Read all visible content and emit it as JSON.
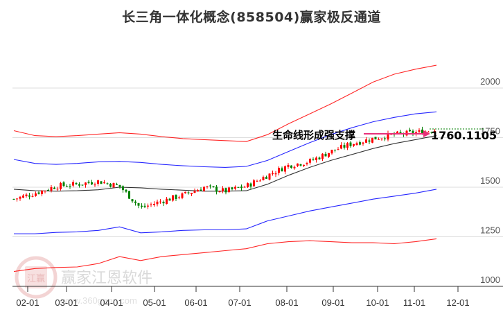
{
  "header": {
    "title": "长三角一体化概念(858504)赢家极反通道"
  },
  "annotation": {
    "label": "生命线形成强支撑",
    "value": "1760.1105"
  },
  "watermark": {
    "brand": "赢家江恩软件",
    "url": "www.360gann.com",
    "seal_chars": [
      "江",
      "赢",
      "恩",
      "家"
    ]
  },
  "colors": {
    "up": "#ff0000",
    "down": "#008000",
    "outer_band": "#ff0000",
    "inner_band": "#0000ff",
    "lifeline": "#000000",
    "arrow": "#e8307a",
    "grid": "#dddddd"
  },
  "chart_data": {
    "type": "line",
    "title": "长三角一体化概念(858504)赢家极反通道",
    "xlabel": "",
    "ylabel": "",
    "ylim": [
      1000,
      2150
    ],
    "y_ticks": [
      1000,
      1250,
      1500,
      1750,
      2000
    ],
    "x_ticks": [
      "02-01",
      "03-01",
      "04-01",
      "05-01",
      "06-01",
      "07-01",
      "08-01",
      "09-01",
      "10-01",
      "11-01",
      "12-01"
    ],
    "grid": true,
    "legend": "none",
    "x": [
      "01-20",
      "02-01",
      "02-15",
      "03-01",
      "03-15",
      "04-01",
      "04-15",
      "05-01",
      "05-15",
      "06-01",
      "06-15",
      "07-01",
      "07-15",
      "08-01",
      "08-15",
      "09-01",
      "09-15",
      "10-01",
      "10-15",
      "11-01",
      "11-15"
    ],
    "series": [
      {
        "name": "upper_outer_red",
        "values": [
          1785,
          1760,
          1755,
          1760,
          1768,
          1775,
          1768,
          1755,
          1745,
          1740,
          1735,
          1730,
          1765,
          1820,
          1870,
          1920,
          1975,
          2030,
          2070,
          2095,
          2115
        ]
      },
      {
        "name": "upper_inner_blue",
        "values": [
          1640,
          1620,
          1615,
          1620,
          1628,
          1630,
          1625,
          1615,
          1608,
          1603,
          1600,
          1605,
          1635,
          1680,
          1725,
          1765,
          1800,
          1830,
          1852,
          1870,
          1880
        ]
      },
      {
        "name": "lifeline_black",
        "values": [
          1490,
          1482,
          1480,
          1482,
          1487,
          1500,
          1497,
          1490,
          1485,
          1480,
          1480,
          1482,
          1515,
          1560,
          1600,
          1635,
          1665,
          1695,
          1720,
          1740,
          1760
        ]
      },
      {
        "name": "lower_inner_blue",
        "values": [
          1265,
          1265,
          1272,
          1275,
          1282,
          1300,
          1270,
          1275,
          1282,
          1285,
          1285,
          1290,
          1330,
          1355,
          1380,
          1400,
          1420,
          1440,
          1455,
          1470,
          1490
        ]
      },
      {
        "name": "lower_outer_red",
        "values": [
          1075,
          1090,
          1095,
          1098,
          1115,
          1150,
          1130,
          1150,
          1160,
          1170,
          1180,
          1190,
          1215,
          1225,
          1230,
          1225,
          1220,
          1220,
          1215,
          1225,
          1240
        ]
      },
      {
        "name": "kline_close",
        "values": [
          1440,
          1470,
          1505,
          1515,
          1530,
          1505,
          1395,
          1430,
          1460,
          1500,
          1480,
          1505,
          1560,
          1610,
          1630,
          1680,
          1720,
          1745,
          1765,
          1775,
          1790
        ]
      }
    ],
    "last_value": 1760.1105,
    "annotation": "生命线形成强支撑"
  }
}
